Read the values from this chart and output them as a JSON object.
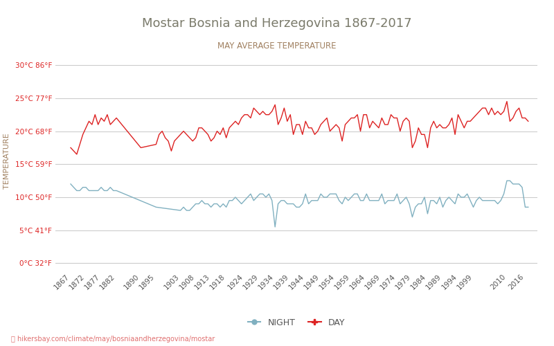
{
  "title": "Mostar Bosnia and Herzegovina 1867-2017",
  "subtitle": "MAY AVERAGE TEMPERATURE",
  "ylabel": "TEMPERATURE",
  "watermark": "hikersbay.com/climate/may/bosniaandherzegovina/mostar",
  "title_color": "#7a7a6a",
  "subtitle_color": "#a08060",
  "ylabel_color": "#a08060",
  "watermark_color": "#e07070",
  "background_color": "#ffffff",
  "grid_color": "#cccccc",
  "day_color": "#dd2222",
  "night_color": "#80b0c0",
  "yticks_celsius": [
    0,
    5,
    10,
    15,
    20,
    25,
    30
  ],
  "yticks_fahrenheit": [
    32,
    41,
    50,
    59,
    68,
    77,
    86
  ],
  "ylim": [
    -1,
    32
  ],
  "years": [
    1867,
    1872,
    1877,
    1882,
    1890,
    1895,
    1903,
    1908,
    1913,
    1918,
    1924,
    1929,
    1934,
    1939,
    1944,
    1949,
    1954,
    1959,
    1964,
    1969,
    1974,
    1979,
    1984,
    1989,
    1994,
    1999,
    2010,
    2016
  ],
  "day_data_years": [
    1867,
    1868,
    1869,
    1870,
    1871,
    1872,
    1873,
    1874,
    1875,
    1876,
    1877,
    1878,
    1879,
    1880,
    1881,
    1882,
    1890,
    1895,
    1896,
    1897,
    1898,
    1899,
    1900,
    1901,
    1902,
    1903,
    1904,
    1905,
    1906,
    1907,
    1908,
    1909,
    1910,
    1911,
    1912,
    1913,
    1914,
    1915,
    1916,
    1917,
    1918,
    1919,
    1920,
    1921,
    1922,
    1923,
    1924,
    1925,
    1926,
    1927,
    1928,
    1929,
    1930,
    1931,
    1932,
    1933,
    1934,
    1935,
    1936,
    1937,
    1938,
    1939,
    1940,
    1941,
    1942,
    1943,
    1944,
    1945,
    1946,
    1947,
    1948,
    1949,
    1950,
    1951,
    1952,
    1953,
    1954,
    1955,
    1956,
    1957,
    1958,
    1959,
    1960,
    1961,
    1962,
    1963,
    1964,
    1965,
    1966,
    1967,
    1968,
    1969,
    1970,
    1971,
    1972,
    1973,
    1974,
    1975,
    1976,
    1977,
    1978,
    1979,
    1980,
    1981,
    1982,
    1983,
    1984,
    1985,
    1986,
    1987,
    1988,
    1989,
    1990,
    1991,
    1992,
    1993,
    1994,
    1995,
    1996,
    1997,
    1998,
    1999,
    2000,
    2001,
    2002,
    2003,
    2004,
    2005,
    2006,
    2007,
    2008,
    2009,
    2010,
    2011,
    2012,
    2013,
    2014,
    2015,
    2016,
    2017
  ],
  "day_data_values": [
    17.5,
    17.0,
    16.5,
    18.0,
    19.5,
    20.5,
    21.5,
    21.0,
    22.5,
    21.0,
    22.0,
    21.5,
    22.5,
    21.0,
    21.5,
    22.0,
    17.5,
    18.0,
    19.5,
    20.0,
    19.0,
    18.5,
    17.0,
    18.5,
    19.0,
    19.5,
    20.0,
    19.5,
    19.0,
    18.5,
    19.0,
    20.5,
    20.5,
    20.0,
    19.5,
    18.5,
    19.0,
    20.0,
    19.5,
    20.5,
    19.0,
    20.5,
    21.0,
    21.5,
    21.0,
    22.0,
    22.5,
    22.5,
    22.0,
    23.5,
    23.0,
    22.5,
    23.0,
    22.5,
    22.5,
    23.0,
    24.0,
    21.0,
    22.0,
    23.5,
    21.5,
    22.5,
    19.5,
    21.0,
    21.0,
    19.5,
    21.5,
    20.5,
    20.5,
    19.5,
    20.0,
    21.0,
    21.5,
    22.0,
    20.0,
    20.5,
    21.0,
    20.5,
    18.5,
    21.0,
    21.5,
    22.0,
    22.0,
    22.5,
    20.0,
    22.5,
    22.5,
    20.5,
    21.5,
    21.0,
    20.5,
    22.0,
    21.0,
    21.0,
    22.5,
    22.0,
    22.0,
    20.0,
    21.5,
    22.0,
    21.5,
    17.5,
    18.5,
    20.5,
    19.5,
    19.5,
    17.5,
    20.5,
    21.5,
    20.5,
    21.0,
    20.5,
    20.5,
    21.0,
    22.0,
    19.5,
    22.5,
    21.5,
    20.5,
    21.5,
    21.5,
    22.0,
    22.5,
    23.0,
    23.5,
    23.5,
    22.5,
    23.5,
    22.5,
    23.0,
    22.5,
    23.0,
    24.5,
    21.5,
    22.0,
    23.0,
    23.5,
    22.0,
    22.0,
    21.5
  ],
  "night_data_years": [
    1867,
    1868,
    1869,
    1870,
    1871,
    1872,
    1873,
    1874,
    1875,
    1876,
    1877,
    1878,
    1879,
    1880,
    1881,
    1882,
    1895,
    1903,
    1904,
    1905,
    1906,
    1907,
    1908,
    1909,
    1910,
    1911,
    1912,
    1913,
    1914,
    1915,
    1916,
    1917,
    1918,
    1919,
    1920,
    1921,
    1922,
    1923,
    1924,
    1925,
    1926,
    1927,
    1928,
    1929,
    1930,
    1931,
    1932,
    1933,
    1934,
    1935,
    1936,
    1937,
    1938,
    1939,
    1940,
    1941,
    1942,
    1943,
    1944,
    1945,
    1946,
    1947,
    1948,
    1949,
    1950,
    1951,
    1952,
    1953,
    1954,
    1955,
    1956,
    1957,
    1958,
    1959,
    1960,
    1961,
    1962,
    1963,
    1964,
    1965,
    1966,
    1967,
    1968,
    1969,
    1970,
    1971,
    1972,
    1973,
    1974,
    1975,
    1976,
    1977,
    1978,
    1979,
    1980,
    1981,
    1982,
    1983,
    1984,
    1985,
    1986,
    1987,
    1988,
    1989,
    1990,
    1991,
    1992,
    1993,
    1994,
    1995,
    1996,
    1997,
    1998,
    1999,
    2000,
    2001,
    2002,
    2003,
    2004,
    2005,
    2006,
    2007,
    2008,
    2009,
    2010,
    2011,
    2012,
    2013,
    2014,
    2015,
    2016,
    2017
  ],
  "night_data_values": [
    12.0,
    11.5,
    11.0,
    11.0,
    11.5,
    11.5,
    11.0,
    11.0,
    11.0,
    11.0,
    11.5,
    11.0,
    11.0,
    11.5,
    11.0,
    11.0,
    8.5,
    8.0,
    8.5,
    8.0,
    8.0,
    8.5,
    9.0,
    9.0,
    9.5,
    9.0,
    9.0,
    8.5,
    9.0,
    9.0,
    8.5,
    9.0,
    8.5,
    9.5,
    9.5,
    10.0,
    9.5,
    9.0,
    9.5,
    10.0,
    10.5,
    9.5,
    10.0,
    10.5,
    10.5,
    10.0,
    10.5,
    9.5,
    5.5,
    9.0,
    9.5,
    9.5,
    9.0,
    9.0,
    9.0,
    8.5,
    8.5,
    9.0,
    10.5,
    9.0,
    9.5,
    9.5,
    9.5,
    10.5,
    10.0,
    10.0,
    10.5,
    10.5,
    10.5,
    9.5,
    9.0,
    10.0,
    9.5,
    10.0,
    10.5,
    10.5,
    9.5,
    9.5,
    10.5,
    9.5,
    9.5,
    9.5,
    9.5,
    10.5,
    9.0,
    9.5,
    9.5,
    9.5,
    10.5,
    9.0,
    9.5,
    10.0,
    9.0,
    7.0,
    8.5,
    9.0,
    9.0,
    10.0,
    7.5,
    9.5,
    9.5,
    9.0,
    10.0,
    8.5,
    9.5,
    10.0,
    9.5,
    9.0,
    10.5,
    10.0,
    10.0,
    10.5,
    9.5,
    8.5,
    9.5,
    10.0,
    9.5,
    9.5,
    9.5,
    9.5,
    9.5,
    9.0,
    9.5,
    10.5,
    12.5,
    12.5,
    12.0,
    12.0,
    12.0,
    11.5,
    8.5,
    8.5
  ]
}
